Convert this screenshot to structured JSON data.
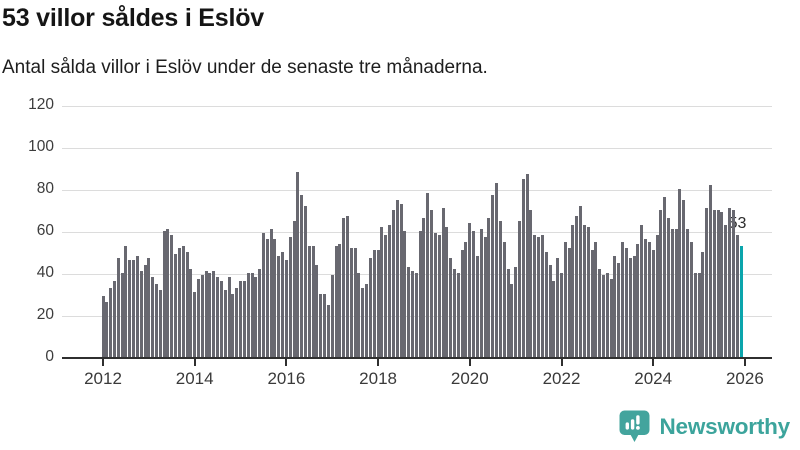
{
  "header": {
    "title": "53 villor såldes i Eslöv",
    "subtitle": "Antal sålda villor i Eslöv under de senaste tre månaderna."
  },
  "chart_data": {
    "type": "bar",
    "title": "53 villor såldes i Eslöv",
    "description": "Antal sålda villor i Eslöv under de senaste tre månaderna.",
    "x_start": "2012-01",
    "x_end": "2025-12",
    "months_per_bar": 1,
    "values": [
      29,
      26,
      33,
      36,
      47,
      40,
      53,
      46,
      46,
      48,
      41,
      44,
      47,
      38,
      35,
      32,
      60,
      61,
      58,
      49,
      52,
      53,
      50,
      42,
      31,
      37,
      39,
      41,
      40,
      41,
      38,
      36,
      32,
      38,
      30,
      33,
      36,
      36,
      40,
      40,
      38,
      42,
      59,
      56,
      61,
      56,
      48,
      50,
      46,
      57,
      65,
      88,
      77,
      72,
      53,
      53,
      44,
      30,
      30,
      25,
      39,
      53,
      54,
      66,
      67,
      52,
      52,
      40,
      33,
      35,
      47,
      51,
      51,
      62,
      58,
      63,
      70,
      75,
      73,
      60,
      43,
      41,
      40,
      60,
      66,
      78,
      70,
      59,
      58,
      71,
      62,
      47,
      42,
      40,
      51,
      55,
      64,
      60,
      48,
      61,
      57,
      66,
      77,
      83,
      65,
      55,
      42,
      35,
      43,
      65,
      85,
      87,
      70,
      58,
      57,
      58,
      50,
      44,
      36,
      47,
      40,
      55,
      52,
      63,
      67,
      72,
      63,
      62,
      51,
      55,
      42,
      39,
      40,
      37,
      48,
      45,
      55,
      52,
      47,
      48,
      54,
      63,
      56,
      55,
      51,
      58,
      70,
      76,
      66,
      61,
      61,
      80,
      75,
      61,
      55,
      40,
      40,
      50,
      71,
      82,
      70,
      70,
      69,
      63,
      71,
      70,
      58,
      53
    ],
    "highlight_last": {
      "label": "53",
      "value": 53,
      "color": "#0aa5ac"
    },
    "bar_color": "#686870",
    "ylim": [
      0,
      120
    ],
    "yticks": [
      0,
      20,
      40,
      60,
      80,
      100,
      120
    ],
    "xticks": [
      2012,
      2014,
      2016,
      2018,
      2020,
      2022,
      2024,
      2026
    ],
    "grid": true,
    "legend_position": "none",
    "colors": {
      "gridline": "#dcdcdc",
      "axis": "#2f2f2f",
      "accent": "#0aa5ac"
    }
  },
  "footer": {
    "brand": "Newsworthy",
    "logo_color": "#43a49d"
  }
}
